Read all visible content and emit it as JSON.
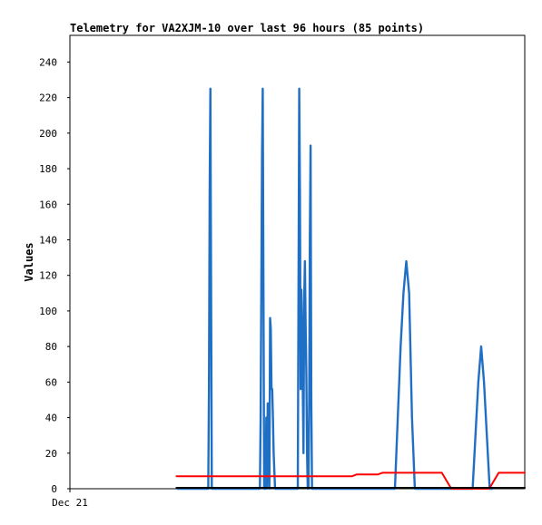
{
  "chart_data": {
    "type": "line",
    "title": "Telemetry for VA2XJM-10 over last 96 hours (85 points)",
    "xlabel": "",
    "ylabel": "Values",
    "x_tick_labels": [
      "Dec 21"
    ],
    "xlim": [
      0,
      96
    ],
    "ylim": [
      0,
      255
    ],
    "y_ticks": [
      0,
      20,
      40,
      60,
      80,
      100,
      120,
      140,
      160,
      180,
      200,
      220,
      240
    ],
    "grid": false,
    "legend": "none",
    "colors": {
      "blue": "#1f6fc5",
      "red": "#ff0000",
      "black": "#000000"
    },
    "series": [
      {
        "color": "#1f6fc5",
        "x": [
          22.7,
          29.2,
          29.35,
          29.5,
          29.65,
          29.8,
          29.95,
          30.1,
          40.1,
          40.25,
          40.4,
          40.55,
          40.7,
          40.85,
          41.0,
          41.3,
          41.45,
          41.6,
          41.75,
          42.1,
          42.25,
          42.4,
          42.55,
          42.7,
          42.85,
          43.0,
          43.3,
          48.1,
          48.25,
          48.4,
          48.55,
          48.7,
          48.85,
          49.0,
          49.15,
          49.3,
          49.45,
          49.6,
          49.75,
          49.9,
          50.05,
          50.2,
          50.35,
          50.5,
          50.65,
          50.8,
          50.95,
          51.1,
          51.25,
          51.4,
          51.55,
          51.7,
          51.85,
          52.0,
          68.6,
          69.2,
          69.8,
          70.4,
          71.0,
          71.6,
          72.2,
          72.8,
          85.0,
          85.6,
          86.2,
          86.8,
          87.4,
          88.0,
          88.6,
          89.2
        ],
        "values": [
          0,
          0,
          56,
          168,
          225,
          112,
          0,
          0,
          0,
          38,
          112,
          187,
          225,
          112,
          0,
          0,
          40,
          0,
          48,
          0,
          96,
          90,
          56,
          56,
          40,
          20,
          0,
          0,
          112,
          225,
          168,
          56,
          112,
          93,
          56,
          20,
          107,
          128,
          93,
          65,
          20,
          0,
          0,
          48,
          143,
          193,
          48,
          0,
          0,
          0,
          0,
          0,
          0,
          0,
          0,
          40,
          80,
          110,
          128,
          110,
          40,
          0,
          0,
          30,
          60,
          80,
          60,
          30,
          0,
          0
        ]
      },
      {
        "color": "#ff0000",
        "x": [
          22.5,
          59.5,
          60.5,
          65.0,
          66.0,
          78.5,
          80.5,
          88.5,
          90.5,
          96.0
        ],
        "values": [
          7,
          7,
          8,
          8,
          9,
          9,
          0,
          0,
          9,
          9
        ]
      },
      {
        "color": "#000000",
        "x": [
          22.5,
          96.0
        ],
        "values": [
          0.5,
          0.5
        ]
      }
    ]
  }
}
